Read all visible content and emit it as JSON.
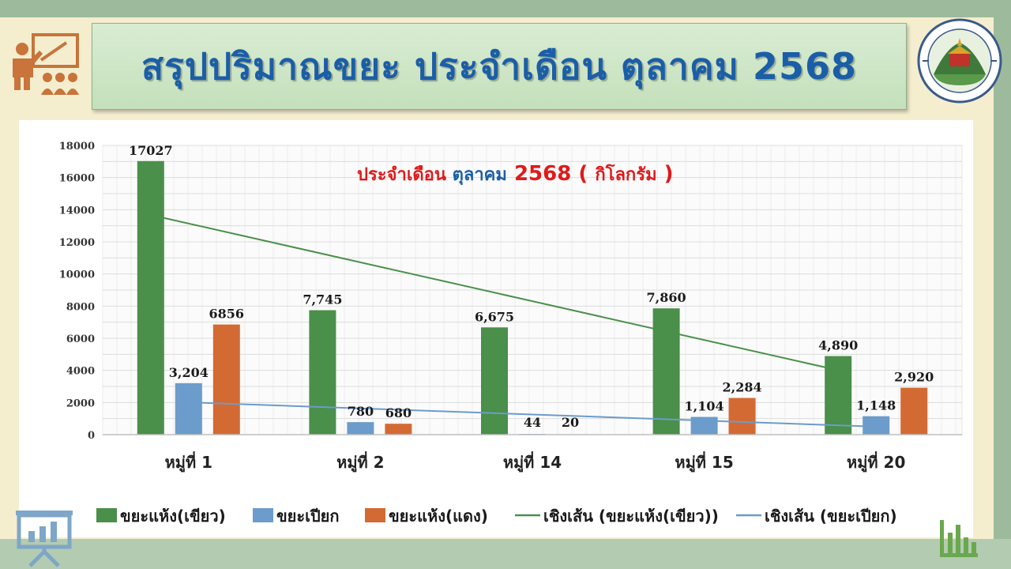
{
  "slide": {
    "title": "สรุปปริมาณขยะ ประจำเดือน ตุลาคม 2568"
  },
  "colors": {
    "title_text": "#1b5ea8",
    "green": "#4a8f4a",
    "blue": "#6b9ccb",
    "orange": "#d46a33",
    "subtitle_red": "#e01a1a",
    "subtitle_blue": "#1b5ea8"
  },
  "chart_data": {
    "type": "bar",
    "subtitle": {
      "part1": "ประจำเดือน ",
      "part2": "ตุลาคม",
      "part3": " 2568 ( ",
      "part4": "กิโลกรัม",
      "part5": " )"
    },
    "categories": [
      "หมู่ที่ 1",
      "หมู่ที่ 2",
      "หมู่ที่ 14",
      "หมู่ที่ 15",
      "หมู่ที่ 20"
    ],
    "ylim": [
      0,
      18000
    ],
    "yticks": [
      "0",
      "2000",
      "4000",
      "6000",
      "8000",
      "10000",
      "12000",
      "14000",
      "16000",
      "18000"
    ],
    "grid": true,
    "legend_position": "bottom",
    "series": [
      {
        "name": "ขยะแห้ง(เขียว)",
        "color": "#4a8f4a",
        "values": [
          17027,
          7745,
          6675,
          7860,
          4890
        ],
        "labels": [
          "17027",
          "7,745",
          "6,675",
          "7,860",
          "4,890"
        ]
      },
      {
        "name": "ขยะเปียก",
        "color": "#6b9ccb",
        "values": [
          3204,
          780,
          44,
          1104,
          1148
        ],
        "labels": [
          "3,204",
          "780",
          "44",
          "1,104",
          "1,148"
        ]
      },
      {
        "name": "ขยะแห้ง(แดง)",
        "color": "#d46a33",
        "values": [
          6856,
          680,
          20,
          2284,
          2920
        ],
        "labels": [
          "6856",
          "680",
          "20",
          "2,284",
          "2,920"
        ]
      }
    ],
    "trendlines": [
      {
        "name": "เชิงเส้น (ขยะแห้ง(เขียว))",
        "color": "#4a8f4a",
        "of_series": 0
      },
      {
        "name": "เชิงเส้น (ขยะเปียก)",
        "color": "#6b9ccb",
        "of_series": 1
      }
    ]
  }
}
